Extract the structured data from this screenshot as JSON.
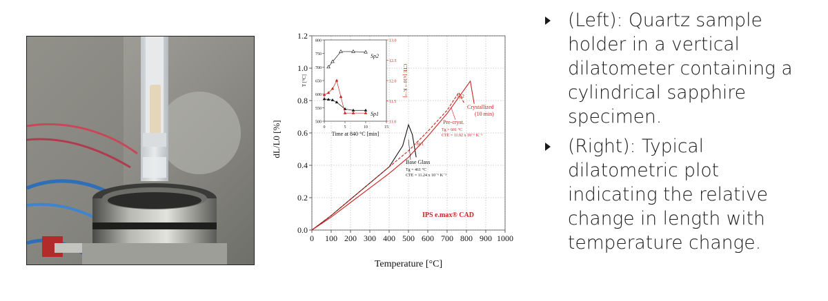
{
  "photo": {
    "description_icon": "dilatometer-photo"
  },
  "plot": {
    "ylabel": "dL/L0 [%]",
    "xlabel": "Temperature [°C]",
    "y_ticks": [
      "0.0",
      "0.2",
      "0.4",
      "0.6",
      "0.8",
      "1.0",
      "1.2"
    ],
    "x_ticks": [
      "0",
      "100",
      "200",
      "300",
      "400",
      "500",
      "600",
      "700",
      "800",
      "900",
      "1000"
    ],
    "brand_label": "IPS e.max® CAD",
    "base_glass": {
      "title": "Base Glass",
      "tg": "Tg = 461 °C",
      "cte": "CTE = 11.24 x 10⁻⁶ K⁻¹"
    },
    "pre_cryst": {
      "title": "Pre-cryst.",
      "tg": "Tg = 601 °C",
      "cte": "CTE = 11.92 x 10⁻⁶ K⁻¹"
    },
    "crystallized": {
      "title": "Crystallized",
      "sub": "(10 min)"
    },
    "sp1_label": "Sp1",
    "sp2_label": "Sp2",
    "inset": {
      "ylabel_left": "T [°C]",
      "ylabel_right": "CTE [x10⁻⁶ K⁻¹]",
      "xlabel": "Time at 840 °C [min]",
      "left_ticks": [
        "500",
        "550",
        "600",
        "650",
        "700",
        "750",
        "800"
      ],
      "right_ticks": [
        "11.0",
        "11.5",
        "12.0",
        "12.5",
        "13.0"
      ],
      "x_ticks": [
        "0",
        "5",
        "10",
        "15"
      ],
      "series_sp1_label": "Sp1",
      "series_sp2_label": "Sp2"
    }
  },
  "bullets": [
    {
      "text": "(Left): Quartz sample holder in a vertical dilatometer containing a cylindrical sapphire specimen."
    },
    {
      "text": "(Right): Typical dilatometric plot indicating the relative change in length with temperature change."
    }
  ],
  "chart_data": {
    "type": "line",
    "xlabel": "Temperature [°C]",
    "ylabel": "dL/L0 [%]",
    "xlim": [
      0,
      1000
    ],
    "ylim": [
      0,
      1.2
    ],
    "series": [
      {
        "name": "Base Glass",
        "x": [
          0,
          100,
          200,
          300,
          400,
          470,
          500,
          520,
          540
        ],
        "y": [
          0,
          0.09,
          0.19,
          0.29,
          0.39,
          0.52,
          0.65,
          0.59,
          0.45
        ]
      },
      {
        "name": "Pre-cryst.",
        "x": [
          0,
          100,
          200,
          300,
          400,
          500,
          600,
          700,
          760,
          790
        ],
        "y": [
          0,
          0.09,
          0.19,
          0.29,
          0.39,
          0.49,
          0.61,
          0.74,
          0.85,
          0.78
        ]
      },
      {
        "name": "Crystallized (10 min)",
        "x": [
          0,
          100,
          200,
          300,
          400,
          500,
          600,
          700,
          790,
          820,
          840
        ],
        "y": [
          0,
          0.08,
          0.17,
          0.26,
          0.35,
          0.45,
          0.58,
          0.72,
          0.87,
          0.92,
          0.78
        ]
      }
    ]
  }
}
